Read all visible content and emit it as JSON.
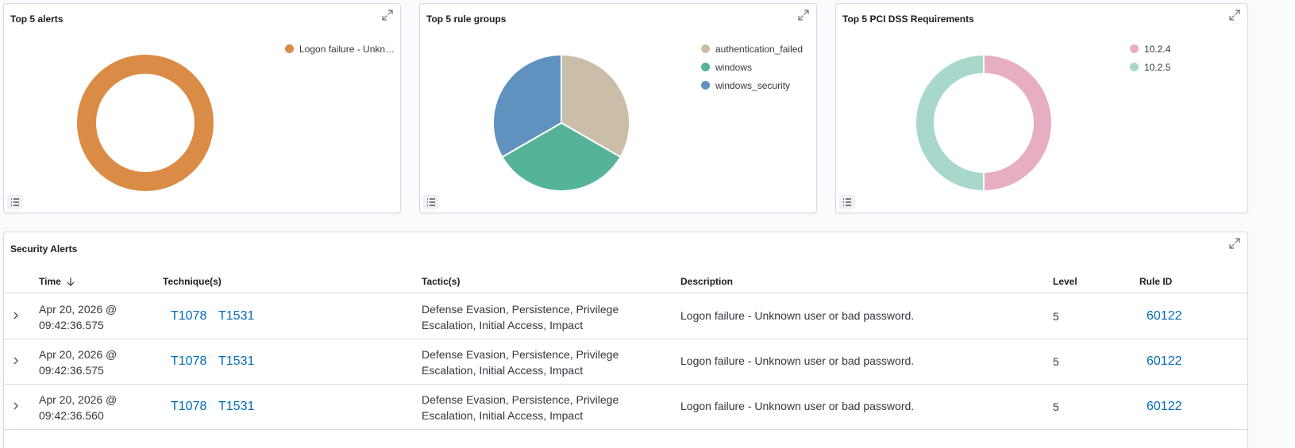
{
  "panels": {
    "alerts": {
      "title": "Top 5 alerts",
      "legend": [
        {
          "label": "Logon failure - Unkn…",
          "color": "#da8b45"
        }
      ]
    },
    "rule_groups": {
      "title": "Top 5 rule groups",
      "legend": [
        {
          "label": "authentication_failed",
          "color": "#cabea8"
        },
        {
          "label": "windows",
          "color": "#54b399"
        },
        {
          "label": "windows_security",
          "color": "#6092c0"
        }
      ]
    },
    "pci": {
      "title": "Top 5 PCI DSS Requirements",
      "legend": [
        {
          "label": "10.2.4",
          "color": "#e7adc2"
        },
        {
          "label": "10.2.5",
          "color": "#a8d8cb"
        }
      ]
    }
  },
  "chart_data": [
    {
      "type": "pie",
      "title": "Top 5 alerts",
      "donut": true,
      "categories": [
        "Logon failure - Unkn…"
      ],
      "values": [
        1
      ],
      "colors": [
        "#da8b45"
      ]
    },
    {
      "type": "pie",
      "title": "Top 5 rule groups",
      "donut": false,
      "categories": [
        "authentication_failed",
        "windows",
        "windows_security"
      ],
      "values": [
        1,
        1,
        1
      ],
      "colors": [
        "#cabea8",
        "#54b399",
        "#6092c0"
      ]
    },
    {
      "type": "pie",
      "title": "Top 5 PCI DSS Requirements",
      "donut": true,
      "categories": [
        "10.2.4",
        "10.2.5"
      ],
      "values": [
        1,
        1
      ],
      "colors": [
        "#e7adc2",
        "#a8d8cb"
      ]
    }
  ],
  "security_alerts": {
    "title": "Security Alerts",
    "columns": {
      "time": "Time",
      "techniques": "Technique(s)",
      "tactics": "Tactic(s)",
      "description": "Description",
      "level": "Level",
      "rule_id": "Rule ID"
    },
    "rows": [
      {
        "time_date": "Apr 20, 2026 @",
        "time_clock": "09:42:36.575",
        "tech1": "T1078",
        "tech2": "T1531",
        "tactic_l1": "Defense Evasion, Persistence, Privilege",
        "tactic_l2": "Escalation, Initial Access, Impact",
        "description": "Logon failure - Unknown user or bad password.",
        "level": "5",
        "rule_id": "60122"
      },
      {
        "time_date": "Apr 20, 2026 @",
        "time_clock": "09:42:36.575",
        "tech1": "T1078",
        "tech2": "T1531",
        "tactic_l1": "Defense Evasion, Persistence, Privilege",
        "tactic_l2": "Escalation, Initial Access, Impact",
        "description": "Logon failure - Unknown user or bad password.",
        "level": "5",
        "rule_id": "60122"
      },
      {
        "time_date": "Apr 20, 2026 @",
        "time_clock": "09:42:36.560",
        "tech1": "T1078",
        "tech2": "T1531",
        "tactic_l1": "Defense Evasion, Persistence, Privilege",
        "tactic_l2": "Escalation, Initial Access, Impact",
        "description": "Logon failure - Unknown user or bad password.",
        "level": "5",
        "rule_id": "60122"
      }
    ]
  }
}
